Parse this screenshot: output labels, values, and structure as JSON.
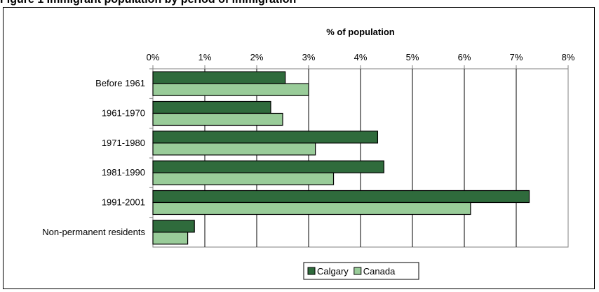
{
  "page_title": "Figure 1 Immigrant population by period of immigration",
  "chart_data": {
    "type": "bar",
    "orientation": "horizontal",
    "title": "% of population",
    "xlabel": "",
    "ylabel": "",
    "xlim": [
      0,
      8
    ],
    "x_ticks": [
      "0%",
      "1%",
      "2%",
      "3%",
      "4%",
      "5%",
      "6%",
      "7%",
      "8%"
    ],
    "categories": [
      "Before 1961",
      "1961-1970",
      "1971-1980",
      "1981-1990",
      "1991-2001",
      "Non-permanent residents"
    ],
    "series": [
      {
        "name": "Calgary",
        "color": "#2f6b3c",
        "values": [
          2.55,
          2.27,
          4.33,
          4.45,
          7.25,
          0.8
        ]
      },
      {
        "name": "Canada",
        "color": "#99cc99",
        "values": [
          3.0,
          2.5,
          3.13,
          3.48,
          6.12,
          0.67
        ]
      }
    ],
    "grid": true,
    "legend_position": "bottom-center"
  }
}
